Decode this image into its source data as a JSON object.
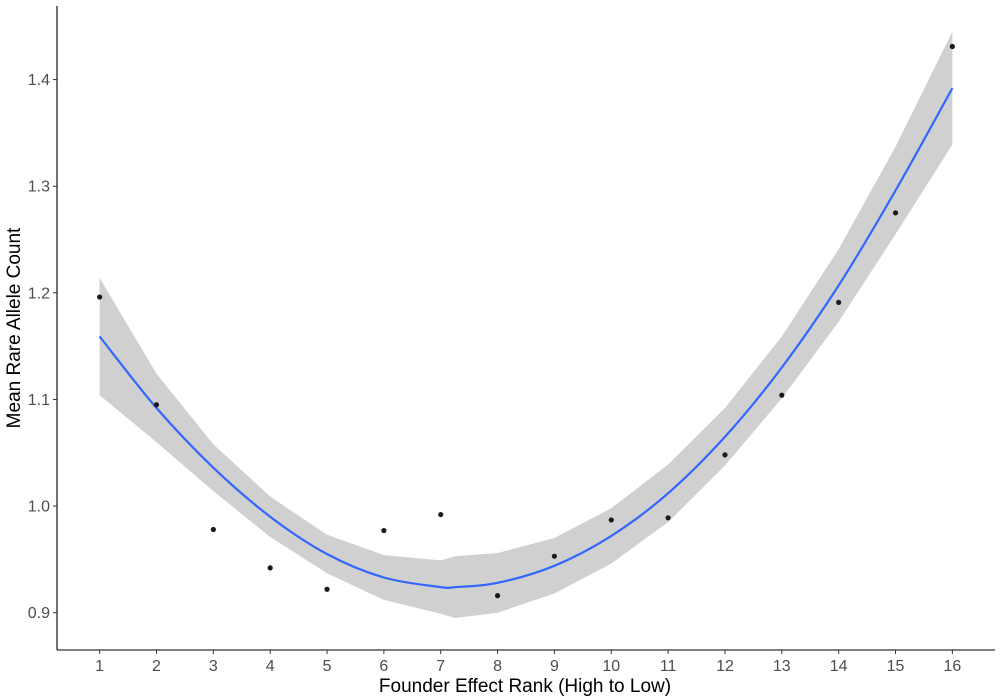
{
  "chart_data": {
    "type": "scatter",
    "title": "",
    "xlabel": "Founder Effect Rank (High to Low)",
    "ylabel": "Mean Rare Allele Count",
    "xlim": [
      0.25,
      16.75
    ],
    "ylim": [
      0.865,
      1.469
    ],
    "x_ticks": [
      1,
      2,
      3,
      4,
      5,
      6,
      7,
      8,
      9,
      10,
      11,
      12,
      13,
      14,
      15,
      16
    ],
    "x_tick_labels": [
      "1",
      "2",
      "3",
      "4",
      "5",
      "6",
      "7",
      "8",
      "9",
      "10",
      "11",
      "12",
      "13",
      "14",
      "15",
      "16"
    ],
    "y_ticks": [
      0.9,
      1.0,
      1.1,
      1.2,
      1.3,
      1.4
    ],
    "y_tick_labels": [
      "0.9",
      "1.0",
      "1.1",
      "1.2",
      "1.3",
      "1.4"
    ],
    "grid": false,
    "points": {
      "x": [
        1,
        2,
        3,
        4,
        5,
        6,
        7,
        8,
        9,
        10,
        11,
        12,
        13,
        14,
        15,
        16
      ],
      "y": [
        1.196,
        1.095,
        0.978,
        0.942,
        0.922,
        0.977,
        0.992,
        0.916,
        0.953,
        0.987,
        0.989,
        1.048,
        1.104,
        1.191,
        1.275,
        1.431
      ]
    },
    "fit": {
      "method": "quadratic smooth",
      "x": [
        1,
        2,
        3,
        4,
        5,
        6,
        7,
        7.25,
        8,
        9,
        10,
        11,
        12,
        13,
        14,
        15,
        16
      ],
      "y": [
        1.159,
        1.092,
        1.036,
        0.99,
        0.955,
        0.933,
        0.924,
        0.924,
        0.928,
        0.944,
        0.972,
        1.012,
        1.065,
        1.13,
        1.207,
        1.296,
        1.392
      ],
      "lower": [
        1.104,
        1.06,
        1.014,
        0.971,
        0.937,
        0.912,
        0.899,
        0.895,
        0.9,
        0.918,
        0.946,
        0.985,
        1.038,
        1.101,
        1.173,
        1.255,
        1.339
      ],
      "upper": [
        1.214,
        1.124,
        1.058,
        1.009,
        0.973,
        0.954,
        0.949,
        0.953,
        0.956,
        0.97,
        0.998,
        1.039,
        1.092,
        1.159,
        1.241,
        1.337,
        1.445
      ],
      "line_color": "#3366ff",
      "band_color": "#d0d0d0"
    },
    "point_color": "#1a1a1a"
  }
}
